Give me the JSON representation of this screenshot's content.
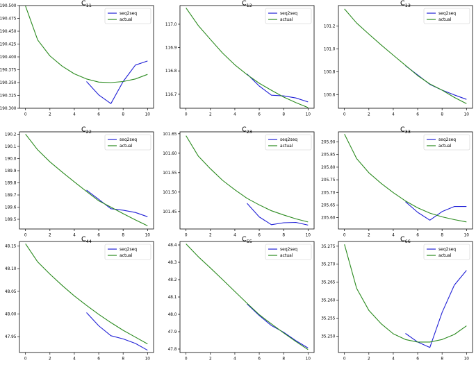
{
  "figure": {
    "series_names": [
      "seq2seq",
      "actual"
    ],
    "colors": {
      "seq2seq": "#1f1fd6",
      "actual": "#2a8a1e",
      "axis": "#000000"
    }
  },
  "chart_data": [
    {
      "type": "line",
      "title_main": "C",
      "title_sub": "11",
      "xlim": [
        0,
        10
      ],
      "ylim": [
        190.3,
        190.5
      ],
      "xticks": [
        "0",
        "2",
        "4",
        "6",
        "8",
        "10"
      ],
      "yticks": [
        190.3,
        190.325,
        190.35,
        190.375,
        190.4,
        190.425,
        190.45,
        190.475,
        190.5
      ],
      "ytick_labels": [
        "190.300",
        "190.325",
        "190.350",
        "190.375",
        "190.400",
        "190.425",
        "190.450",
        "190.475",
        "190.500"
      ],
      "legend": "top-right",
      "series": [
        {
          "name": "seq2seq",
          "x": [
            5,
            6,
            7,
            8,
            9,
            10
          ],
          "values": [
            190.352,
            190.326,
            190.309,
            190.352,
            190.384,
            190.392
          ]
        },
        {
          "name": "actual",
          "x": [
            0,
            1,
            2,
            3,
            4,
            5,
            6,
            7,
            8,
            9,
            10
          ],
          "values": [
            190.499,
            190.433,
            190.402,
            190.382,
            190.367,
            190.357,
            190.351,
            190.35,
            190.352,
            190.357,
            190.366
          ]
        }
      ]
    },
    {
      "type": "line",
      "title_main": "C",
      "title_sub": "12",
      "xlim": [
        0,
        10
      ],
      "ylim": [
        116.64,
        117.08
      ],
      "xticks": [
        "0",
        "2",
        "4",
        "6",
        "8",
        "10"
      ],
      "yticks": [
        116.7,
        116.8,
        116.9,
        117.0
      ],
      "ytick_labels": [
        "116.7",
        "116.8",
        "116.9",
        "117.0"
      ],
      "legend": "top-right",
      "series": [
        {
          "name": "seq2seq",
          "x": [
            5,
            6,
            7,
            8,
            9,
            10
          ],
          "values": [
            116.787,
            116.735,
            116.696,
            116.693,
            116.684,
            116.667
          ]
        },
        {
          "name": "actual",
          "x": [
            0,
            1,
            2,
            3,
            4,
            5,
            6,
            7,
            8,
            9,
            10
          ],
          "values": [
            117.07,
            116.995,
            116.935,
            116.876,
            116.826,
            116.784,
            116.747,
            116.717,
            116.688,
            116.664,
            116.643
          ]
        }
      ]
    },
    {
      "type": "line",
      "title_main": "C",
      "title_sub": "13",
      "xlim": [
        0,
        10
      ],
      "ylim": [
        100.48,
        101.38
      ],
      "xticks": [
        "0",
        "2",
        "4",
        "6",
        "8",
        "10"
      ],
      "yticks": [
        100.6,
        100.8,
        101.0,
        101.2
      ],
      "ytick_labels": [
        "100.6",
        "100.8",
        "101.0",
        "101.2"
      ],
      "legend": "top-right",
      "series": [
        {
          "name": "seq2seq",
          "x": [
            5,
            6,
            7,
            8,
            9,
            10
          ],
          "values": [
            100.853,
            100.771,
            100.689,
            100.639,
            100.597,
            100.558
          ]
        },
        {
          "name": "actual",
          "x": [
            0,
            1,
            2,
            3,
            4,
            5,
            6,
            7,
            8,
            9,
            10
          ],
          "values": [
            101.35,
            101.227,
            101.13,
            101.035,
            100.945,
            100.856,
            100.766,
            100.693,
            100.639,
            100.575,
            100.52
          ]
        }
      ]
    },
    {
      "type": "line",
      "title_main": "C",
      "title_sub": "22",
      "xlim": [
        0,
        10
      ],
      "ylim": [
        189.42,
        190.22
      ],
      "xticks": [
        "0",
        "2",
        "4",
        "6",
        "8",
        "10"
      ],
      "yticks": [
        189.5,
        189.6,
        189.7,
        189.8,
        189.9,
        190.0,
        190.1,
        190.2
      ],
      "ytick_labels": [
        "189.5",
        "189.6",
        "189.7",
        "189.8",
        "189.9",
        "190.0",
        "190.1",
        "190.2"
      ],
      "legend": "top-right",
      "series": [
        {
          "name": "seq2seq",
          "x": [
            5,
            6,
            7,
            8,
            9,
            10
          ],
          "values": [
            189.74,
            189.664,
            189.587,
            189.575,
            189.556,
            189.521
          ]
        },
        {
          "name": "actual",
          "x": [
            0,
            1,
            2,
            3,
            4,
            5,
            6,
            7,
            8,
            9,
            10
          ],
          "values": [
            190.201,
            190.072,
            189.973,
            189.889,
            189.808,
            189.729,
            189.652,
            189.6,
            189.546,
            189.495,
            189.446
          ]
        }
      ]
    },
    {
      "type": "line",
      "title_main": "C",
      "title_sub": "23",
      "xlim": [
        0,
        10
      ],
      "ylim": [
        101.405,
        101.655
      ],
      "xticks": [
        "0",
        "2",
        "4",
        "6",
        "8",
        "10"
      ],
      "yticks": [
        101.45,
        101.5,
        101.55,
        101.6,
        101.65
      ],
      "ytick_labels": [
        "101.45",
        "101.50",
        "101.55",
        "101.60",
        "101.65"
      ],
      "legend": "top-right",
      "series": [
        {
          "name": "seq2seq",
          "x": [
            5,
            6,
            7,
            8,
            9,
            10
          ],
          "values": [
            101.471,
            101.436,
            101.416,
            101.421,
            101.422,
            101.415
          ]
        },
        {
          "name": "actual",
          "x": [
            0,
            1,
            2,
            3,
            4,
            5,
            6,
            7,
            8,
            9,
            10
          ],
          "values": [
            101.645,
            101.593,
            101.56,
            101.53,
            101.506,
            101.484,
            101.467,
            101.452,
            101.441,
            101.431,
            101.423
          ]
        }
      ]
    },
    {
      "type": "line",
      "title_main": "C",
      "title_sub": "33",
      "xlim": [
        0,
        10
      ],
      "ylim": [
        205.555,
        205.94
      ],
      "xticks": [
        "0",
        "2",
        "4",
        "6",
        "8",
        "10"
      ],
      "yticks": [
        205.6,
        205.65,
        205.7,
        205.75,
        205.8,
        205.85,
        205.9
      ],
      "ytick_labels": [
        "205.60",
        "205.65",
        "205.70",
        "205.75",
        "205.80",
        "205.85",
        "205.90"
      ],
      "legend": "top-right",
      "series": [
        {
          "name": "seq2seq",
          "x": [
            5,
            6,
            7,
            8,
            9,
            10
          ],
          "values": [
            205.663,
            205.621,
            205.59,
            205.624,
            205.644,
            205.644
          ]
        },
        {
          "name": "actual",
          "x": [
            0,
            1,
            2,
            3,
            4,
            5,
            6,
            7,
            8,
            9,
            10
          ],
          "values": [
            205.931,
            205.834,
            205.778,
            205.736,
            205.699,
            205.666,
            205.639,
            205.618,
            205.603,
            205.592,
            205.583
          ]
        }
      ]
    },
    {
      "type": "line",
      "title_main": "C",
      "title_sub": "44",
      "xlim": [
        0,
        10
      ],
      "ylim": [
        47.915,
        48.16
      ],
      "xticks": [
        "0",
        "2",
        "4",
        "6",
        "8",
        "10"
      ],
      "yticks": [
        47.95,
        48.0,
        48.05,
        48.1,
        48.15
      ],
      "ytick_labels": [
        "47.95",
        "48.00",
        "48.05",
        "48.10",
        "48.15"
      ],
      "legend": "top-right",
      "series": [
        {
          "name": "seq2seq",
          "x": [
            5,
            6,
            7,
            8,
            9,
            10
          ],
          "values": [
            48.003,
            47.974,
            47.952,
            47.945,
            47.935,
            47.92
          ]
        },
        {
          "name": "actual",
          "x": [
            0,
            1,
            2,
            3,
            4,
            5,
            6,
            7,
            8,
            9,
            10
          ],
          "values": [
            48.155,
            48.115,
            48.088,
            48.063,
            48.04,
            48.019,
            47.999,
            47.981,
            47.964,
            47.949,
            47.934
          ]
        }
      ]
    },
    {
      "type": "line",
      "title_main": "C",
      "title_sub": "55",
      "xlim": [
        0,
        10
      ],
      "ylim": [
        47.78,
        48.42
      ],
      "xticks": [
        "0",
        "2",
        "4",
        "6",
        "8",
        "10"
      ],
      "yticks": [
        47.8,
        47.9,
        48.0,
        48.1,
        48.2,
        48.3,
        48.4
      ],
      "ytick_labels": [
        "47.8",
        "47.9",
        "48.0",
        "48.1",
        "48.2",
        "48.3",
        "48.4"
      ],
      "legend": "top-right",
      "series": [
        {
          "name": "seq2seq",
          "x": [
            5,
            6,
            7,
            8,
            9,
            10
          ],
          "values": [
            48.06,
            47.993,
            47.935,
            47.897,
            47.848,
            47.806
          ]
        },
        {
          "name": "actual",
          "x": [
            0,
            1,
            2,
            3,
            4,
            5,
            6,
            7,
            8,
            9,
            10
          ],
          "values": [
            48.406,
            48.333,
            48.267,
            48.2,
            48.132,
            48.064,
            47.998,
            47.945,
            47.893,
            47.843,
            47.797
          ]
        }
      ]
    },
    {
      "type": "line",
      "title_main": "C",
      "title_sub": "66",
      "xlim": [
        0,
        10
      ],
      "ylim": [
        35.2455,
        35.2763
      ],
      "xticks": [
        "0",
        "2",
        "4",
        "6",
        "8",
        "10"
      ],
      "yticks": [
        35.25,
        35.255,
        35.26,
        35.265,
        35.27,
        35.275
      ],
      "ytick_labels": [
        "35.250",
        "35.255",
        "35.260",
        "35.265",
        "35.270",
        "35.275"
      ],
      "legend": "top-right",
      "series": [
        {
          "name": "seq2seq",
          "x": [
            5,
            6,
            7,
            8,
            9,
            10
          ],
          "values": [
            35.2508,
            35.2484,
            35.2469,
            35.2566,
            35.2642,
            35.2683
          ]
        },
        {
          "name": "actual",
          "x": [
            0,
            1,
            2,
            3,
            4,
            5,
            6,
            7,
            8,
            9,
            10
          ],
          "values": [
            35.2755,
            35.2633,
            35.2572,
            35.2535,
            35.2507,
            35.2491,
            35.2484,
            35.2484,
            35.2491,
            35.2505,
            35.2529
          ]
        }
      ]
    }
  ]
}
